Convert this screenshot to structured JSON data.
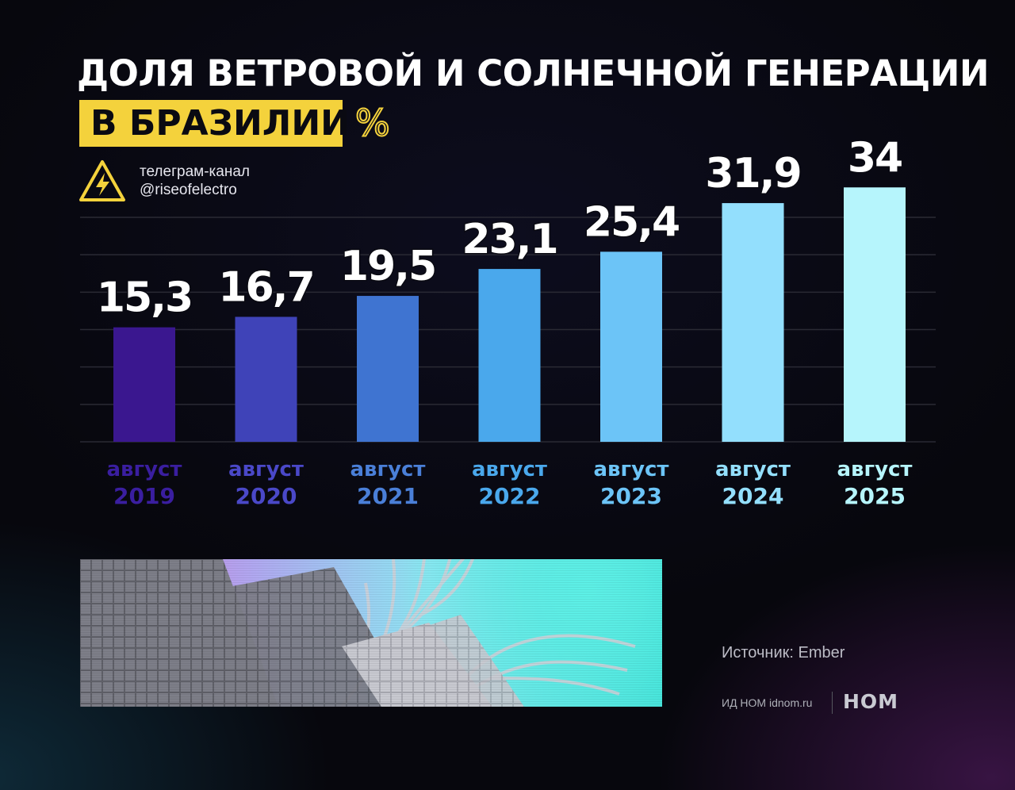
{
  "header": {
    "title_line1": "ДОЛЯ ВЕТРОВОЙ И СОЛНЕЧНОЙ ГЕНЕРАЦИИ",
    "title_line2": "В БРАЗИЛИИ",
    "unit": "%"
  },
  "channel": {
    "line1": "телеграм-канал",
    "line2": "@riseofelectro",
    "icon": "high-voltage-warning-icon"
  },
  "chart_data": {
    "type": "bar",
    "categories": [
      "август 2019",
      "август 2020",
      "август 2021",
      "август 2022",
      "август 2023",
      "август 2024",
      "август 2025"
    ],
    "category_lines": [
      [
        "август",
        "2019"
      ],
      [
        "август",
        "2020"
      ],
      [
        "август",
        "2021"
      ],
      [
        "август",
        "2022"
      ],
      [
        "август",
        "2023"
      ],
      [
        "август",
        "2024"
      ],
      [
        "август",
        "2025"
      ]
    ],
    "values": [
      15.3,
      16.7,
      19.5,
      23.1,
      25.4,
      31.9,
      34
    ],
    "data_labels": [
      "15,3",
      "16,7",
      "19,5",
      "23,1",
      "25,4",
      "31,9",
      "34"
    ],
    "bar_colors": [
      "#3a178f",
      "#3f43b8",
      "#3f74d1",
      "#4aa8ec",
      "#6cc4f7",
      "#93dffd",
      "#b6f5fc"
    ],
    "label_colors": [
      "#3a1ea0",
      "#4a48c8",
      "#4a7fd8",
      "#4aa8ec",
      "#6cc4f7",
      "#93dffd",
      "#b6f5fc"
    ],
    "ylim": [
      0,
      30
    ],
    "grid": true,
    "legend": "none"
  },
  "photo": {
    "description_icon": "solar-panels-palm-leaf-photo"
  },
  "footer": {
    "source": "Источник: Ember",
    "publisher": "ИД НОМ idnom.ru",
    "logo": "НОМ"
  }
}
